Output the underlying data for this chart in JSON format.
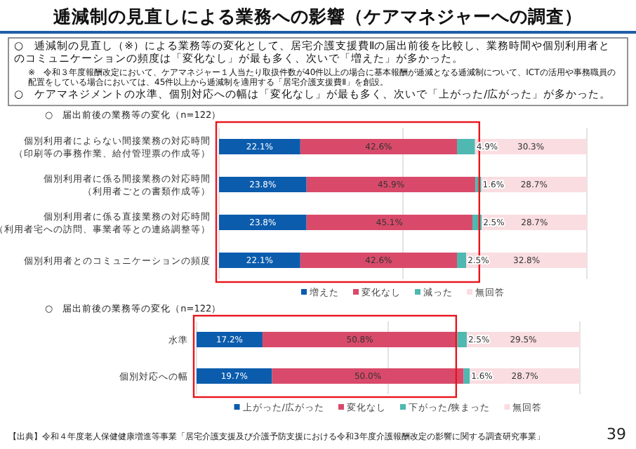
{
  "chart_data": [
    {
      "type": "other",
      "title": "逓減制の見直しによる業務への影響（ケアマネジャーへの調査）",
      "annotations": [
        "○　逓減制の見直し（※）による業務等の変化として、居宅介護支援費Ⅱの届出前後を比較し、業務時間や個別利用者とのコミュニケーションの頻度は「変化なし」が最も多く、次いで「増えた」が多かった。",
        "※　令和３年度報酬改定において、ケアマネジャー１人当たり取扱件数が40件以上の場合に基本報酬が逓減となる逓減制について、ICTの活用や事務職員の配置をしている場合においては、45件以上から逓減制を適用する「居宅介護支援費Ⅱ」を創設。",
        "○　ケアマネジメントの水準、個別対応への幅は「変化なし」が最も多く、次いで「上がった/広がった」が多かった。"
      ]
    },
    {
      "type": "bar",
      "orientation": "horizontal",
      "stacked": true,
      "subtitle": "○　届出前後の業務等の変化（n=122）",
      "categories": [
        "個別利用者によらない間接業務の対応時間（印刷等の事務作業、給付管理票の作成等）",
        "個別利用者に係る間接業務の対応時間（利用者ごとの書類作成等）",
        "個別利用者に係る直接業務の対応時間（利用者宅への訪問、事業者等との連絡調整等）",
        "個別利用者とのコミュニケーションの頻度"
      ],
      "xlim": [
        0,
        100
      ],
      "xticks": [
        {
          "value": 0,
          "label": null
        },
        {
          "value": 50,
          "label": null
        },
        {
          "value": 100,
          "label": null
        }
      ],
      "grid": "x",
      "legend": "bottom",
      "tick_labels": "y",
      "series": [
        {
          "name": "増えた",
          "color": "#0b5cad",
          "values": [
            22.1,
            23.8,
            23.8,
            22.1
          ],
          "value_labels": [
            "22.1%",
            "23.8%",
            "23.8%",
            "22.1%"
          ]
        },
        {
          "name": "変化なし",
          "color": "#d94a6a",
          "values": [
            42.6,
            45.9,
            45.1,
            42.6
          ],
          "value_labels": [
            "42.6%",
            "45.9%",
            "45.1%",
            "42.6%"
          ]
        },
        {
          "name": "減った",
          "color": "#4fb8b0",
          "values": [
            4.9,
            1.6,
            2.5,
            2.5
          ],
          "value_labels": [
            "4.9%",
            "1.6%",
            "2.5%",
            "2.5%"
          ]
        },
        {
          "name": "無回答",
          "color": "#fadde1",
          "values": [
            30.3,
            28.7,
            28.7,
            32.8
          ],
          "value_labels": [
            "30.3%",
            "28.7%",
            "28.7%",
            "32.8%"
          ]
        }
      ]
    },
    {
      "type": "bar",
      "orientation": "horizontal",
      "stacked": true,
      "subtitle": "○　届出前後の業務等の変化（n=122）",
      "categories": [
        "水準",
        "個別対応への幅"
      ],
      "xlim": [
        0,
        100
      ],
      "xticks": [
        {
          "value": 0,
          "label": null
        },
        {
          "value": 50,
          "label": null
        },
        {
          "value": 100,
          "label": null
        }
      ],
      "grid": "x",
      "legend": "bottom",
      "tick_labels": "y",
      "annotations": [
        "【出典】令和４年度老人保健健康増進等事業「居宅介護支援及び介護予防支援における令和3年度介護報酬改定の影響に関する調査研究事業」",
        "39"
      ],
      "series": [
        {
          "name": "上がった/広がった",
          "color": "#0b5cad",
          "values": [
            17.2,
            19.7
          ],
          "value_labels": [
            "17.2%",
            "19.7%"
          ]
        },
        {
          "name": "変化なし",
          "color": "#d94a6a",
          "values": [
            50.8,
            50.0
          ],
          "value_labels": [
            "50.8%",
            "50.0%"
          ]
        },
        {
          "name": "下がった/狭まった",
          "color": "#4fb8b0",
          "values": [
            2.5,
            1.6
          ],
          "value_labels": [
            "2.5%",
            "1.6%"
          ]
        },
        {
          "name": "無回答",
          "color": "#fadde1",
          "values": [
            29.5,
            28.7
          ],
          "value_labels": [
            "29.5%",
            "28.7%"
          ]
        }
      ]
    }
  ]
}
